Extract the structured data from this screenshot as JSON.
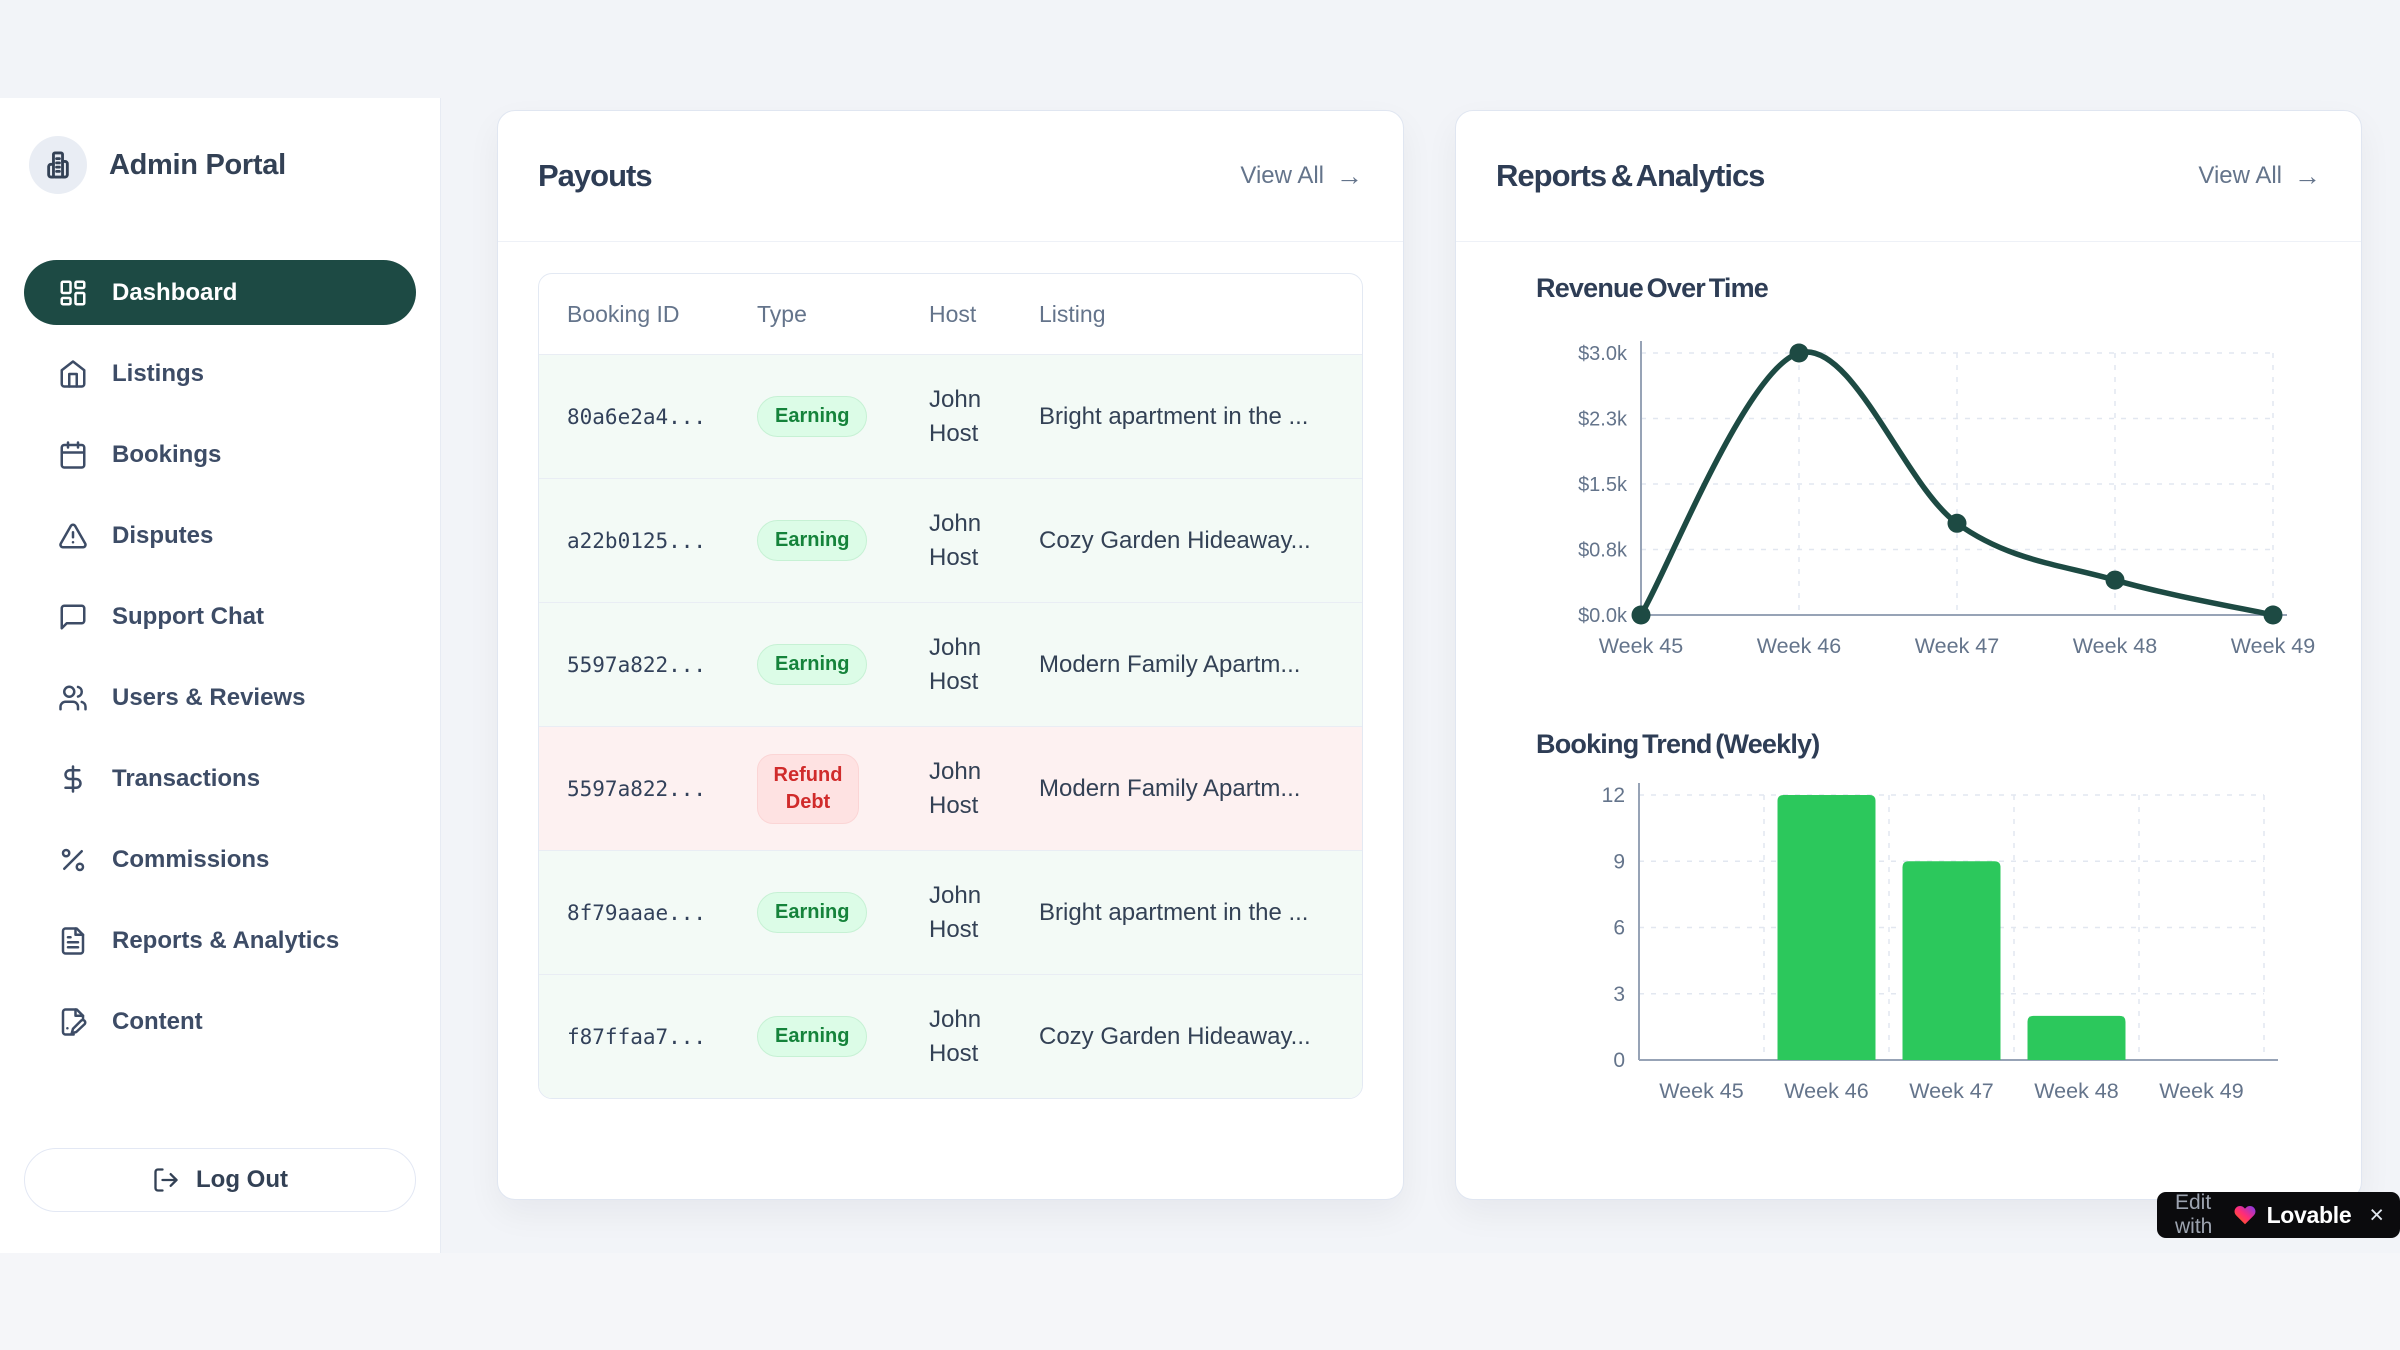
{
  "sidebar": {
    "brand": "Admin Portal",
    "items": [
      {
        "label": "Dashboard",
        "icon": "dashboard-icon",
        "active": true
      },
      {
        "label": "Listings",
        "icon": "home-icon",
        "active": false
      },
      {
        "label": "Bookings",
        "icon": "calendar-icon",
        "active": false
      },
      {
        "label": "Disputes",
        "icon": "alert-triangle-icon",
        "active": false
      },
      {
        "label": "Support Chat",
        "icon": "chat-bubble-icon",
        "active": false
      },
      {
        "label": "Users & Reviews",
        "icon": "users-icon",
        "active": false
      },
      {
        "label": "Transactions",
        "icon": "dollar-icon",
        "active": false
      },
      {
        "label": "Commissions",
        "icon": "percent-icon",
        "active": false
      },
      {
        "label": "Reports & Analytics",
        "icon": "file-text-icon",
        "active": false
      },
      {
        "label": "Content",
        "icon": "file-pen-icon",
        "active": false
      }
    ],
    "logout": {
      "label": "Log Out",
      "icon": "logout-icon"
    }
  },
  "ui": {
    "arrow_right": "→"
  },
  "payouts": {
    "title": "Payouts",
    "view_all": "View All",
    "table": {
      "columns": [
        "Booking ID",
        "Type",
        "Host",
        "Listing"
      ],
      "rows": [
        {
          "booking_id": "80a6e2a4...",
          "type": "Earning",
          "host": "John Host",
          "listing": "Bright apartment in the ..."
        },
        {
          "booking_id": "a22b0125...",
          "type": "Earning",
          "host": "John Host",
          "listing": "Cozy Garden Hideaway..."
        },
        {
          "booking_id": "5597a822...",
          "type": "Earning",
          "host": "John Host",
          "listing": "Modern Family Apartm..."
        },
        {
          "booking_id": "5597a822...",
          "type": "Refund Debt",
          "host": "John Host",
          "listing": "Modern Family Apartm..."
        },
        {
          "booking_id": "8f79aaae...",
          "type": "Earning",
          "host": "John Host",
          "listing": "Bright apartment in the ..."
        },
        {
          "booking_id": "f87ffaa7...",
          "type": "Earning",
          "host": "John Host",
          "listing": "Cozy Garden Hideaway..."
        }
      ]
    }
  },
  "reports": {
    "title": "Reports & Analytics",
    "view_all": "View All"
  },
  "chart_data": [
    {
      "type": "line",
      "title": "Revenue Over Time",
      "categories": [
        "Week 45",
        "Week 46",
        "Week 47",
        "Week 48",
        "Week 49"
      ],
      "values": [
        0,
        3000,
        1050,
        400,
        0
      ],
      "y_tick_labels": [
        "$0.0k",
        "$0.8k",
        "$1.5k",
        "$2.3k",
        "$3.0k"
      ],
      "y_tick_values": [
        0,
        750,
        1500,
        2250,
        3000
      ],
      "ylim": [
        0,
        3000
      ],
      "xlabel": "",
      "ylabel": "",
      "grid": "dashed",
      "legend": "none",
      "line_color": "#1d4a43",
      "point_color": "#1d4a43"
    },
    {
      "type": "bar",
      "title": "Booking Trend (Weekly)",
      "categories": [
        "Week 45",
        "Week 46",
        "Week 47",
        "Week 48",
        "Week 49"
      ],
      "values": [
        0,
        12,
        9,
        2,
        0
      ],
      "y_tick_labels": [
        "0",
        "3",
        "6",
        "9",
        "12"
      ],
      "y_tick_values": [
        0,
        3,
        6,
        9,
        12
      ],
      "ylim": [
        0,
        12
      ],
      "xlabel": "",
      "ylabel": "",
      "grid": "dashed",
      "legend": "none",
      "bar_color": "#2cc85c"
    }
  ],
  "lovable": {
    "prefix": "Edit with",
    "brand": "Lovable",
    "close": "×"
  },
  "colors": {
    "accent_teal": "#1d4a44",
    "bar_green": "#2cc85c",
    "earning_bg": "#dcfce7",
    "earning_text": "#15833b",
    "refund_bg": "#fee2e2",
    "refund_text": "#d02b2b",
    "tick_text": "#64748b",
    "axis": "#97a3b6",
    "gridline": "#e2e7f0"
  }
}
